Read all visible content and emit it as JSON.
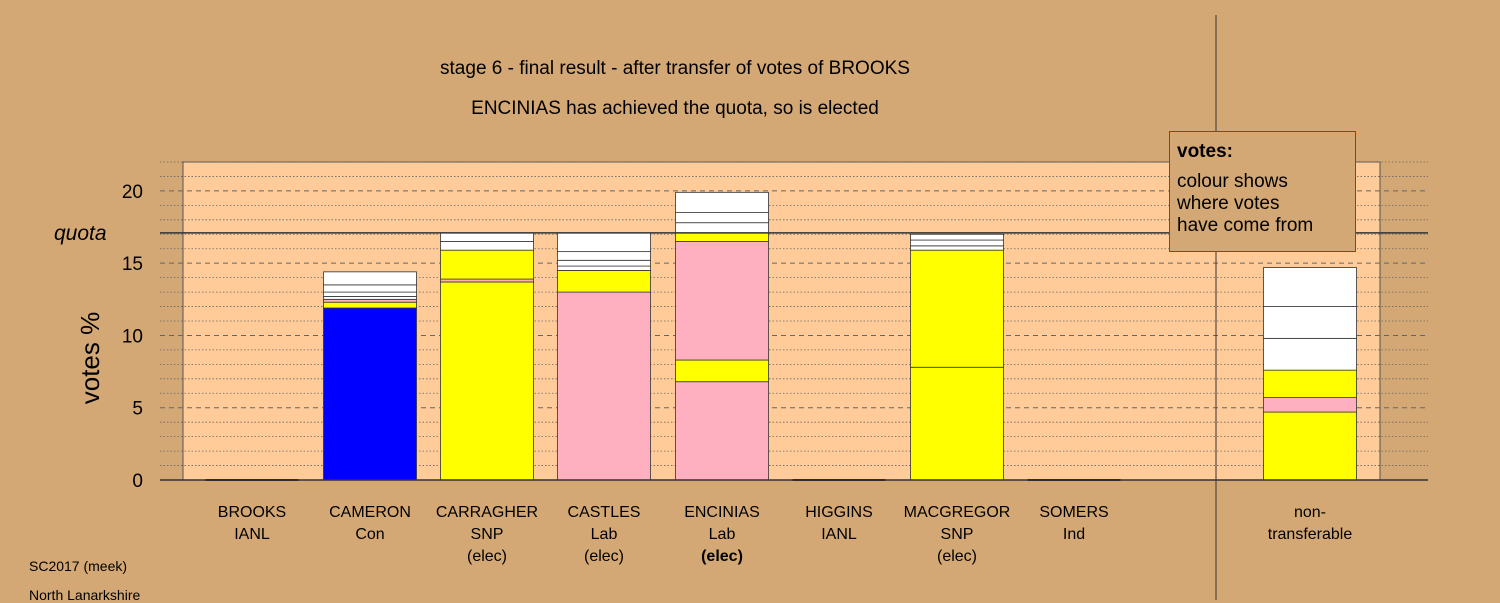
{
  "chart_data": {
    "type": "bar",
    "stacked": true,
    "title": "stage 6 - final result - after transfer of votes of BROOKS",
    "subtitle": "ENCINIAS has achieved the quota, so is elected",
    "ylabel": "votes %",
    "ylim": [
      0,
      22
    ],
    "yticks": [
      0,
      5,
      10,
      15,
      20
    ],
    "quota": 17.1,
    "quota_label": "quota",
    "grid": true,
    "legend_position": "top-right",
    "categories": [
      {
        "name": "BROOKS",
        "party": "IANL",
        "status": "",
        "bold": false
      },
      {
        "name": "CAMERON",
        "party": "Con",
        "status": "",
        "bold": false
      },
      {
        "name": "CARRAGHER",
        "party": "SNP",
        "status": "(elec)",
        "bold": false
      },
      {
        "name": "CASTLES",
        "party": "Lab",
        "status": "(elec)",
        "bold": false
      },
      {
        "name": "ENCINIAS",
        "party": "Lab",
        "status": "(elec)",
        "bold": true
      },
      {
        "name": "HIGGINS",
        "party": "IANL",
        "status": "",
        "bold": false
      },
      {
        "name": "MACGREGOR",
        "party": "SNP",
        "status": "(elec)",
        "bold": false
      },
      {
        "name": "SOMERS",
        "party": "Ind",
        "status": "",
        "bold": false
      },
      {
        "name": "non-",
        "party": "transferable",
        "status": "",
        "bold": false
      }
    ],
    "stacks": [
      [],
      [
        [
          11.9,
          "#0000ff"
        ],
        [
          0.4,
          "#ffff00"
        ],
        [
          0.2,
          "#ffb0c0"
        ],
        [
          0.2,
          "#ffffff"
        ],
        [
          0.3,
          "#ffffff"
        ],
        [
          0.5,
          "#ffffff"
        ],
        [
          0.9,
          "#ffffff"
        ]
      ],
      [
        [
          13.7,
          "#ffff00"
        ],
        [
          0.2,
          "#ffb0c0"
        ],
        [
          2.0,
          "#ffff00"
        ],
        [
          0.6,
          "#ffffff"
        ],
        [
          0.6,
          "#ffffff"
        ]
      ],
      [
        [
          13.0,
          "#ffb0c0"
        ],
        [
          1.5,
          "#ffff00"
        ],
        [
          0.3,
          "#ffffff"
        ],
        [
          0.4,
          "#ffffff"
        ],
        [
          0.6,
          "#ffffff"
        ],
        [
          1.3,
          "#ffffff"
        ]
      ],
      [
        [
          6.8,
          "#ffb0c0"
        ],
        [
          1.5,
          "#ffff00"
        ],
        [
          8.2,
          "#ffb0c0"
        ],
        [
          0.6,
          "#ffff00"
        ],
        [
          0.7,
          "#ffffff"
        ],
        [
          0.7,
          "#ffffff"
        ],
        [
          1.4,
          "#ffffff"
        ]
      ],
      [],
      [
        [
          7.8,
          "#ffff00"
        ],
        [
          8.1,
          "#ffff00"
        ],
        [
          0.3,
          "#ffffff"
        ],
        [
          0.4,
          "#ffffff"
        ],
        [
          0.4,
          "#ffffff"
        ]
      ],
      [],
      [
        [
          4.7,
          "#ffff00"
        ],
        [
          1.0,
          "#ffb0c0"
        ],
        [
          1.9,
          "#ffff00"
        ],
        [
          2.2,
          "#ffffff"
        ],
        [
          2.2,
          "#ffffff"
        ],
        [
          2.7,
          "#ffffff"
        ]
      ]
    ]
  },
  "legend": {
    "title": "votes:",
    "line1": "colour shows",
    "line2": "where votes",
    "line3": "have come from"
  },
  "footer": {
    "source": "SC2017 (meek)",
    "region": "North Lanarkshire"
  },
  "colors": {
    "background": "#d4a875",
    "plot_area": "#ffcc99",
    "con": "#0000ff",
    "snp": "#ffff00",
    "lab": "#ffb0c0",
    "other": "#ffffff"
  }
}
